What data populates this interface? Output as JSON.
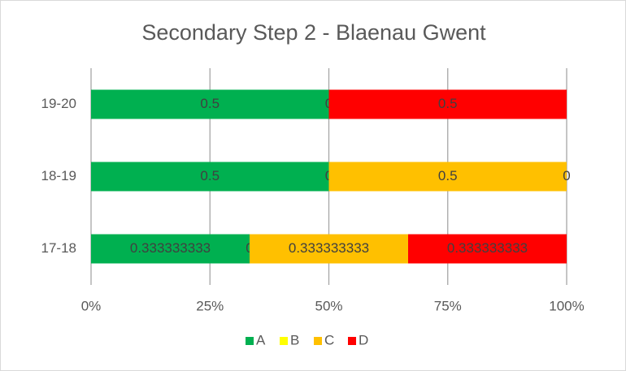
{
  "chart_data": {
    "type": "stacked_bar_horizontal",
    "title": "Secondary Step 2 - Blaenau Gwent",
    "categories": [
      "19-20",
      "18-19",
      "17-18"
    ],
    "series": [
      {
        "name": "A",
        "color": "#00b050",
        "values": [
          0.5,
          0.5,
          0.333333333
        ]
      },
      {
        "name": "B",
        "color": "#ffff00",
        "values": [
          0,
          0,
          0
        ]
      },
      {
        "name": "C",
        "color": "#ffc000",
        "values": [
          null,
          0.5,
          0.333333333
        ]
      },
      {
        "name": "D",
        "color": "#ff0000",
        "values": [
          0.5,
          0,
          0.333333333
        ]
      }
    ],
    "xlim": [
      0,
      1
    ],
    "xticks": [
      {
        "value": 0,
        "label": "0%"
      },
      {
        "value": 0.25,
        "label": "25%"
      },
      {
        "value": 0.5,
        "label": "50%"
      },
      {
        "value": 0.75,
        "label": "75%"
      },
      {
        "value": 1,
        "label": "100%"
      }
    ],
    "grid": true,
    "legend": "bottom"
  }
}
